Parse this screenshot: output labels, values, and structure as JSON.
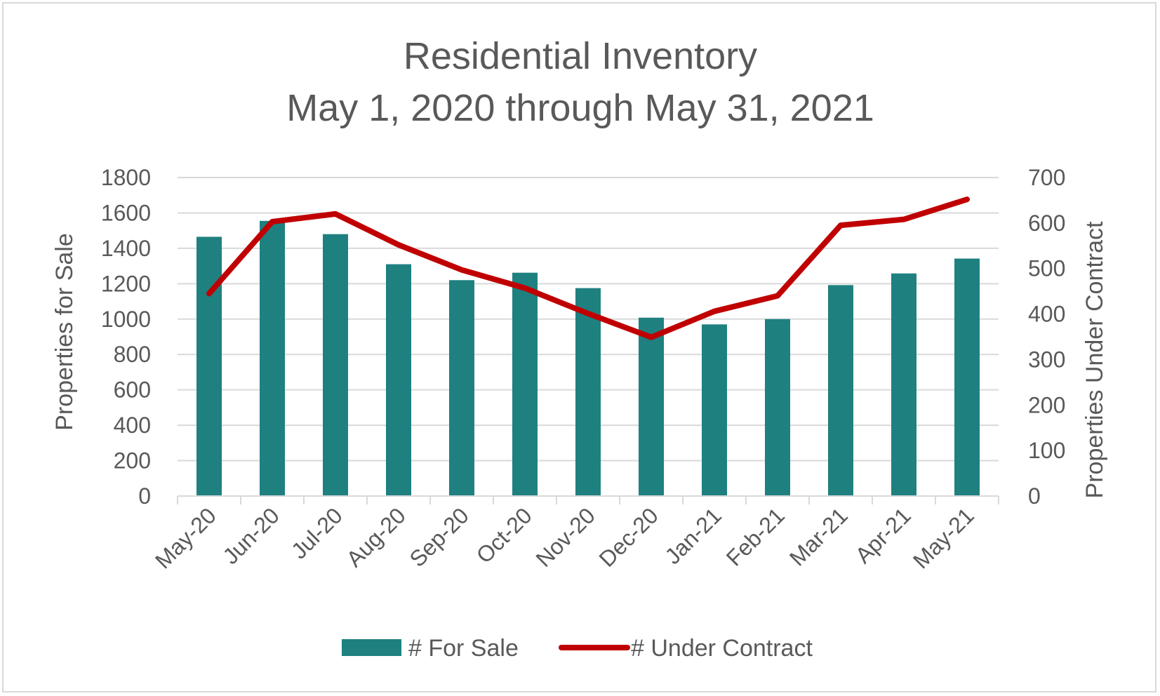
{
  "chart_data": {
    "type": "bar",
    "title": [
      "Residential Inventory",
      "May 1, 2020 through May 31, 2021"
    ],
    "categories": [
      "May-20",
      "Jun-20",
      "Jul-20",
      "Aug-20",
      "Sep-20",
      "Oct-20",
      "Nov-20",
      "Dec-20",
      "Jan-21",
      "Feb-21",
      "Mar-21",
      "Apr-21",
      "May-21"
    ],
    "series": [
      {
        "name": "# For Sale",
        "type": "bar",
        "axis": "left",
        "color": "#1f8080",
        "values": [
          1465,
          1555,
          1480,
          1310,
          1220,
          1262,
          1175,
          1008,
          970,
          1000,
          1192,
          1258,
          1342
        ]
      },
      {
        "name": "# Under Contract",
        "type": "line",
        "axis": "right",
        "color": "#c00000",
        "values": [
          445,
          603,
          620,
          552,
          497,
          457,
          401,
          349,
          406,
          440,
          595,
          608,
          652
        ]
      }
    ],
    "ylabel": "Properties for Sale",
    "ylim": [
      0,
      1800
    ],
    "yticks": [
      "0",
      "200",
      "400",
      "600",
      "800",
      "1000",
      "1200",
      "1400",
      "1600",
      "1800"
    ],
    "y2label": "Properties Under Contract",
    "y2lim": [
      0,
      700
    ],
    "y2ticks": [
      "0",
      "100",
      "200",
      "300",
      "400",
      "500",
      "600",
      "700"
    ],
    "grid": true,
    "legend": "bottom"
  }
}
